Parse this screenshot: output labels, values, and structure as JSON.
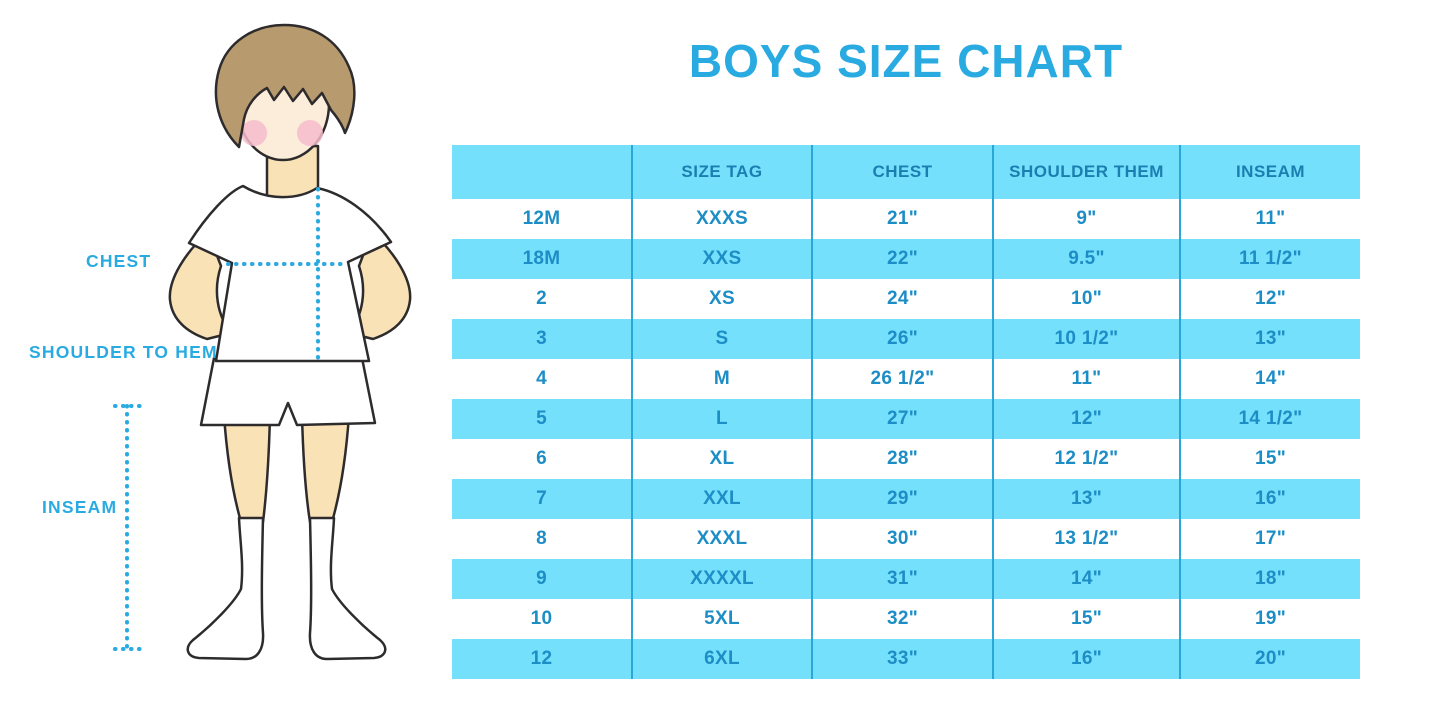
{
  "title": "BOYS SIZE CHART",
  "figure_labels": {
    "chest": "CHEST",
    "shoulder_to_hem": "SHOULDER TO HEM",
    "inseam": "INSEAM"
  },
  "chart_data": {
    "type": "table",
    "title": "BOYS SIZE CHART",
    "columns": [
      "",
      "SIZE TAG",
      "CHEST",
      "SHOULDER THEM",
      "INSEAM"
    ],
    "rows": [
      [
        "12M",
        "XXXS",
        "21\"",
        "9\"",
        "11\""
      ],
      [
        "18M",
        "XXS",
        "22\"",
        "9.5\"",
        "11 1/2\""
      ],
      [
        "2",
        "XS",
        "24\"",
        "10\"",
        "12\""
      ],
      [
        "3",
        "S",
        "26\"",
        "10 1/2\"",
        "13\""
      ],
      [
        "4",
        "M",
        "26 1/2\"",
        "11\"",
        "14\""
      ],
      [
        "5",
        "L",
        "27\"",
        "12\"",
        "14 1/2\""
      ],
      [
        "6",
        "XL",
        "28\"",
        "12 1/2\"",
        "15\""
      ],
      [
        "7",
        "XXL",
        "29\"",
        "13\"",
        "16\""
      ],
      [
        "8",
        "XXXL",
        "30\"",
        "13 1/2\"",
        "17\""
      ],
      [
        "9",
        "XXXXL",
        "31\"",
        "14\"",
        "18\""
      ],
      [
        "10",
        "5XL",
        "32\"",
        "15\"",
        "19\""
      ],
      [
        "12",
        "6XL",
        "33\"",
        "16\"",
        "20\""
      ]
    ]
  },
  "colors": {
    "accent": "#29abe2",
    "row_band_blue": "#74e0fc",
    "column_divider_blue": "#2aa7d9",
    "header_text_blue": "#1a7fb0",
    "cell_text_blue": "#1d8dc6",
    "outline_dark": "#2e2b2d",
    "skin": "#f9e2b6",
    "face_skin": "#fcecda",
    "hair_brown": "#b79a6e",
    "blush_pink": "#f4bccb",
    "garment_white": "#ffffff"
  }
}
